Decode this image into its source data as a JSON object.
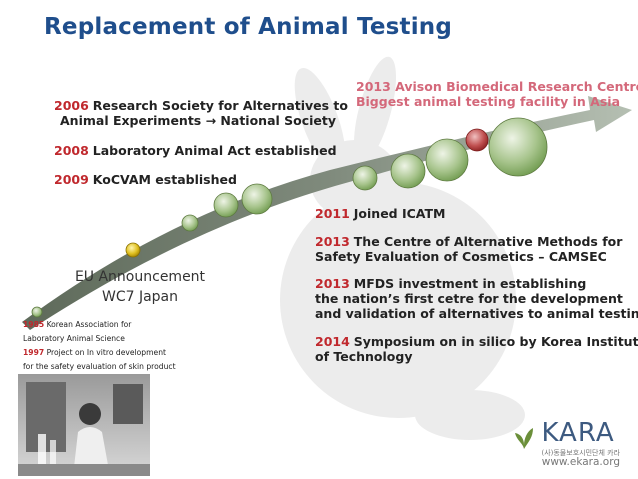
{
  "title": "Replacement of Animal Testing",
  "left_events": [
    {
      "year": "2006",
      "lines": [
        "Research Society for Alternatives to",
        "Animal Experiments → National Society"
      ]
    },
    {
      "year": "2008",
      "lines": [
        "Laboratory Animal Act established"
      ]
    },
    {
      "year": "2009",
      "lines": [
        "KoCVAM established"
      ]
    }
  ],
  "top_right_event": {
    "line1": "2013 Avison Biomedical Research Centre",
    "line2": "Biggest animal testing facility in Asia"
  },
  "right_events": [
    {
      "year": "2011",
      "lines": [
        "Joined ICATM"
      ]
    },
    {
      "year": "2013",
      "lines": [
        "The Centre of Alternative Methods for",
        "Safety Evaluation of Cosmetics – CAMSEC"
      ]
    },
    {
      "year": "2013",
      "lines": [
        "MFDS investment in establishing",
        "the nation’s first cetre for the development",
        "and validation of alternatives to animal testing"
      ]
    },
    {
      "year": "2014",
      "lines": [
        "Symposium on in silico by Korea Institute",
        "of Technology"
      ]
    }
  ],
  "eu_announcement": {
    "line1": "EU Announcement",
    "line2": "WC7 Japan"
  },
  "early_events": [
    {
      "year": "1985",
      "text": "Korean Association for"
    },
    {
      "year": "",
      "text": "Laboratory Animal Science"
    },
    {
      "year": "1997",
      "text": "Project on In vitro development"
    },
    {
      "year": "",
      "text": "for the safety evaluation of skin product"
    }
  ],
  "logo": {
    "name": "KARA",
    "subtitle": "(사)동물보호시민단체 카라",
    "url": "www.ekara.org"
  },
  "colors": {
    "title": "#1f4e8c",
    "year": "#c0282d",
    "highlight": "#d4687a",
    "milestone_red": "#b03030",
    "milestone_yellow": "#d9b800",
    "milestone_green": "#7aa84a"
  }
}
